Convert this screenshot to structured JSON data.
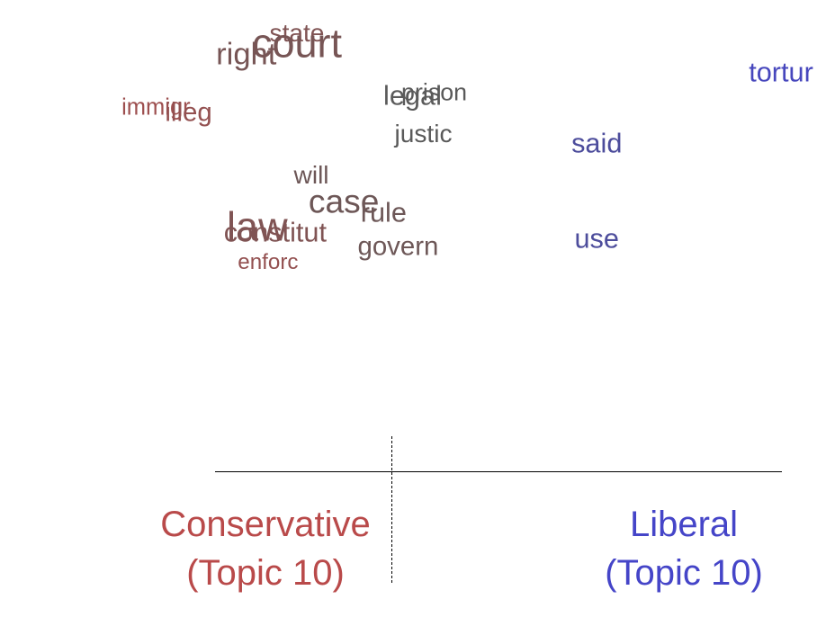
{
  "chart_data": {
    "type": "scatter",
    "words": [
      {
        "label": "state",
        "x": -0.34,
        "y": 0.96,
        "weight": 0.35,
        "score": 0.3
      },
      {
        "label": "court",
        "x": -0.34,
        "y": 0.91,
        "weight": 1.0,
        "score": 0.35
      },
      {
        "label": "right",
        "x": -0.48,
        "y": 0.85,
        "weight": 0.6,
        "score": 0.35
      },
      {
        "label": "tortur",
        "x": 1.0,
        "y": 0.76,
        "weight": 0.45,
        "score": 0.95
      },
      {
        "label": "legal",
        "x": -0.02,
        "y": 0.64,
        "weight": 0.45,
        "score": 0.5
      },
      {
        "label": "prison",
        "x": 0.04,
        "y": 0.66,
        "weight": 0.3,
        "score": 0.5
      },
      {
        "label": "immigr",
        "x": -0.73,
        "y": 0.58,
        "weight": 0.25,
        "score": 0.15
      },
      {
        "label": "illeg",
        "x": -0.64,
        "y": 0.56,
        "weight": 0.4,
        "score": 0.2
      },
      {
        "label": "justic",
        "x": 0.01,
        "y": 0.45,
        "weight": 0.35,
        "score": 0.5
      },
      {
        "label": "said",
        "x": 0.49,
        "y": 0.4,
        "weight": 0.45,
        "score": 0.8
      },
      {
        "label": "will",
        "x": -0.3,
        "y": 0.24,
        "weight": 0.35,
        "score": 0.4
      },
      {
        "label": "case",
        "x": -0.21,
        "y": 0.11,
        "weight": 0.7,
        "score": 0.4
      },
      {
        "label": "rule",
        "x": -0.1,
        "y": 0.05,
        "weight": 0.45,
        "score": 0.4
      },
      {
        "label": "law",
        "x": -0.45,
        "y": -0.02,
        "weight": 1.0,
        "score": 0.3
      },
      {
        "label": "constitut",
        "x": -0.4,
        "y": -0.05,
        "weight": 0.45,
        "score": 0.3
      },
      {
        "label": "use",
        "x": 0.49,
        "y": -0.08,
        "weight": 0.45,
        "score": 0.8
      },
      {
        "label": "govern",
        "x": -0.06,
        "y": -0.12,
        "weight": 0.4,
        "score": 0.4
      },
      {
        "label": "enforc",
        "x": -0.42,
        "y": -0.2,
        "weight": 0.2,
        "score": 0.2
      }
    ],
    "xlim": [
      -1,
      1
    ],
    "ylim": [
      -1,
      1
    ],
    "grid": false,
    "pole_labels": {
      "left": {
        "line1": "Conservative",
        "line2": "(Topic 10)"
      },
      "right": {
        "line1": "Liberal",
        "line2": "(Topic 10)"
      }
    }
  },
  "colors": {
    "conservative": "#b94a4a",
    "liberal": "#4545c8",
    "neutral": "#5a5a5a",
    "axis": "#000000"
  }
}
